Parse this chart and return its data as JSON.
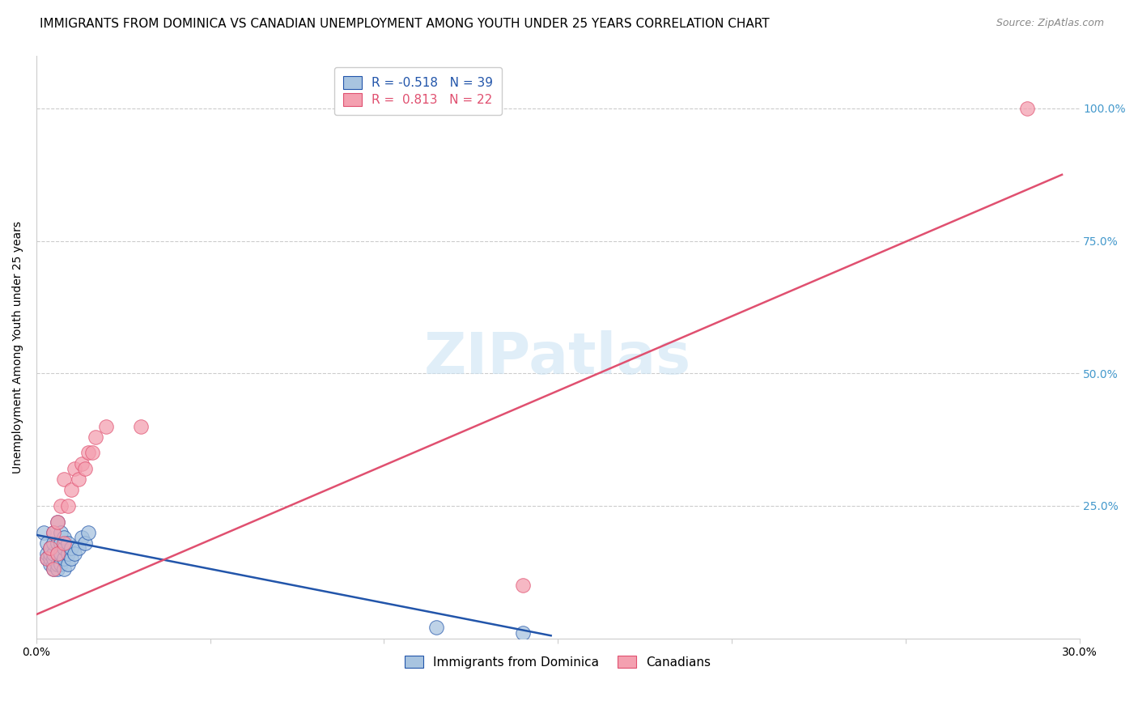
{
  "title": "IMMIGRANTS FROM DOMINICA VS CANADIAN UNEMPLOYMENT AMONG YOUTH UNDER 25 YEARS CORRELATION CHART",
  "source": "Source: ZipAtlas.com",
  "ylabel": "Unemployment Among Youth under 25 years",
  "xlim": [
    0.0,
    0.3
  ],
  "ylim": [
    0.0,
    1.1
  ],
  "xticks": [
    0.0,
    0.05,
    0.1,
    0.15,
    0.2,
    0.25,
    0.3
  ],
  "xtick_labels": [
    "0.0%",
    "",
    "",
    "",
    "",
    "",
    "30.0%"
  ],
  "ytick_positions": [
    0.0,
    0.25,
    0.5,
    0.75,
    1.0
  ],
  "ytick_labels": [
    "",
    "25.0%",
    "50.0%",
    "75.0%",
    "100.0%"
  ],
  "blue_r": "-0.518",
  "blue_n": "39",
  "pink_r": "0.813",
  "pink_n": "22",
  "blue_color": "#a8c4e0",
  "pink_color": "#f4a0b0",
  "blue_line_color": "#2255aa",
  "pink_line_color": "#e05070",
  "watermark": "ZIPatlas",
  "legend_label_blue": "Immigrants from Dominica",
  "legend_label_pink": "Canadians",
  "blue_scatter_x": [
    0.002,
    0.003,
    0.003,
    0.003,
    0.004,
    0.004,
    0.004,
    0.004,
    0.005,
    0.005,
    0.005,
    0.005,
    0.005,
    0.005,
    0.006,
    0.006,
    0.006,
    0.006,
    0.006,
    0.007,
    0.007,
    0.007,
    0.007,
    0.008,
    0.008,
    0.008,
    0.008,
    0.009,
    0.009,
    0.009,
    0.01,
    0.01,
    0.011,
    0.012,
    0.013,
    0.014,
    0.015,
    0.115,
    0.14
  ],
  "blue_scatter_y": [
    0.2,
    0.15,
    0.16,
    0.18,
    0.14,
    0.15,
    0.16,
    0.17,
    0.13,
    0.14,
    0.15,
    0.16,
    0.18,
    0.2,
    0.13,
    0.14,
    0.16,
    0.18,
    0.22,
    0.14,
    0.16,
    0.18,
    0.2,
    0.13,
    0.15,
    0.17,
    0.19,
    0.14,
    0.16,
    0.18,
    0.15,
    0.17,
    0.16,
    0.17,
    0.19,
    0.18,
    0.2,
    0.02,
    0.01
  ],
  "pink_scatter_x": [
    0.003,
    0.004,
    0.005,
    0.005,
    0.006,
    0.006,
    0.007,
    0.008,
    0.008,
    0.009,
    0.01,
    0.011,
    0.012,
    0.013,
    0.014,
    0.015,
    0.016,
    0.017,
    0.02,
    0.03,
    0.14,
    0.285
  ],
  "pink_scatter_y": [
    0.15,
    0.17,
    0.13,
    0.2,
    0.16,
    0.22,
    0.25,
    0.18,
    0.3,
    0.25,
    0.28,
    0.32,
    0.3,
    0.33,
    0.32,
    0.35,
    0.35,
    0.38,
    0.4,
    0.4,
    0.1,
    1.0
  ],
  "blue_line_x": [
    0.0,
    0.148
  ],
  "blue_line_y": [
    0.195,
    0.005
  ],
  "pink_line_x": [
    0.0,
    0.295
  ],
  "pink_line_y": [
    0.045,
    0.875
  ],
  "grid_color": "#cccccc",
  "title_fontsize": 11,
  "axis_label_fontsize": 10,
  "tick_fontsize": 10,
  "right_tick_color": "#4499cc"
}
